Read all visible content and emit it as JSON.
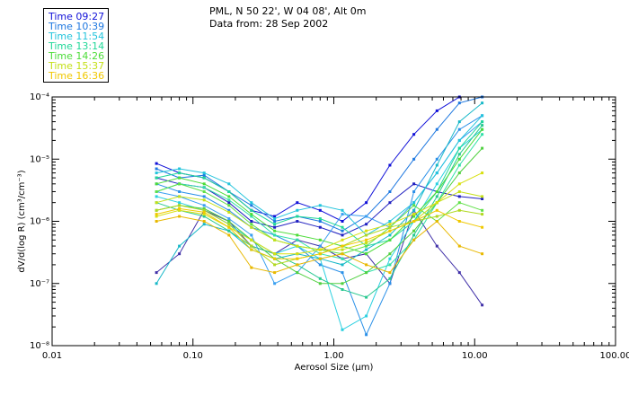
{
  "chart_data": {
    "type": "line",
    "title_lines": [
      "PML, N 50 22', W 04 08', Alt 0m",
      "Data from: 28 Sep 2002"
    ],
    "xlabel": "Aerosol Size (µm)",
    "ylabel": "dV/d(log R) (cm³/cm⁻³)",
    "x_scale": "log",
    "y_scale": "log",
    "xlim": [
      0.01,
      100.0
    ],
    "ylim": [
      1e-08,
      0.0001
    ],
    "x_tick_labels": [
      "0.01",
      "0.10",
      "1.00",
      "10.00",
      "100.00"
    ],
    "x_tick_values": [
      0.01,
      0.1,
      1.0,
      10.0,
      100.0
    ],
    "y_tick_labels": [
      "10⁻⁸",
      "10⁻⁷",
      "10⁻⁶",
      "10⁻⁵",
      "10⁻⁴"
    ],
    "y_tick_values": [
      1e-08,
      1e-07,
      1e-06,
      1e-05,
      0.0001
    ],
    "x": [
      0.055,
      0.08,
      0.12,
      0.18,
      0.26,
      0.38,
      0.55,
      0.8,
      1.15,
      1.7,
      2.5,
      3.7,
      5.4,
      7.8,
      11.3
    ],
    "legend": [
      {
        "label": "Time 09:27",
        "color": "#1010d8"
      },
      {
        "label": "Time 10:39",
        "color": "#1e78e0"
      },
      {
        "label": "Time 11:54",
        "color": "#22c4dc"
      },
      {
        "label": "Time 13:14",
        "color": "#20d898"
      },
      {
        "label": "Time 14:26",
        "color": "#4cdc38"
      },
      {
        "label": "Time 15:37",
        "color": "#c4e018"
      },
      {
        "label": "Time 16:36",
        "color": "#f0c800"
      }
    ],
    "series": [
      {
        "name": "Time 09:27",
        "color": "#1010d8",
        "values": [
          8.5e-06,
          6e-06,
          5e-06,
          3e-06,
          1.5e-06,
          1.2e-06,
          2e-06,
          1.5e-06,
          1e-06,
          2e-06,
          8e-06,
          2.5e-05,
          6e-05,
          0.0001,
          0.00012
        ]
      },
      {
        "name": "Time 09:27",
        "color": "#2020c0",
        "values": [
          5e-06,
          4e-06,
          3.5e-06,
          2e-06,
          1e-06,
          8e-07,
          1e-06,
          8e-07,
          6e-07,
          9e-07,
          2e-06,
          4e-06,
          3e-06,
          2.5e-06,
          2.3e-06
        ]
      },
      {
        "name": "Time 09:27",
        "color": "#4030a8",
        "values": [
          1.5e-07,
          3e-07,
          1.5e-06,
          1e-06,
          4e-07,
          3e-07,
          5e-07,
          4e-07,
          2.5e-07,
          3e-07,
          1e-07,
          1.5e-06,
          4e-07,
          1.5e-07,
          4.5e-08
        ]
      },
      {
        "name": "Time 10:39",
        "color": "#1e78e0",
        "values": [
          7e-06,
          5e-06,
          5.5e-06,
          3e-06,
          1.8e-06,
          1e-06,
          1.2e-06,
          1e-06,
          7e-07,
          1.2e-06,
          3e-06,
          1e-05,
          3e-05,
          8e-05,
          0.0001
        ]
      },
      {
        "name": "Time 10:39",
        "color": "#2a90e8",
        "values": [
          4e-06,
          3e-06,
          2.5e-06,
          1.5e-06,
          8e-07,
          6e-07,
          4e-07,
          2e-07,
          1.5e-07,
          1.5e-08,
          1e-07,
          3e-06,
          1e-05,
          3e-05,
          5e-05
        ]
      },
      {
        "name": "Time 10:39",
        "color": "#3aa0f0",
        "values": [
          3e-06,
          2.5e-06,
          1.8e-06,
          1.1e-06,
          6e-07,
          1e-07,
          1.5e-07,
          4e-07,
          1.3e-06,
          1.2e-06,
          8e-07,
          2e-06,
          6e-06,
          2e-05,
          4e-05
        ]
      },
      {
        "name": "Time 11:54",
        "color": "#22c4dc",
        "values": [
          6e-06,
          7e-06,
          6e-06,
          4e-06,
          2e-06,
          1.1e-06,
          1.5e-06,
          1.8e-06,
          1.5e-06,
          6e-07,
          1e-06,
          2e-06,
          6e-06,
          2e-05,
          5e-05
        ]
      },
      {
        "name": "Time 11:54",
        "color": "#2ad0e0",
        "values": [
          2.5e-06,
          2e-06,
          1.5e-06,
          9e-07,
          5e-07,
          3e-07,
          4e-07,
          2.5e-07,
          1.8e-08,
          3e-08,
          2.5e-07,
          1e-06,
          4e-06,
          1.5e-05,
          3e-05
        ]
      },
      {
        "name": "Time 11:54",
        "color": "#18b8c8",
        "values": [
          1e-07,
          4e-07,
          9e-07,
          7e-07,
          3.5e-07,
          2.5e-07,
          3e-07,
          2.5e-07,
          2e-07,
          3.5e-07,
          6e-07,
          1.5e-06,
          8e-06,
          4e-05,
          8e-05
        ]
      },
      {
        "name": "Time 13:14",
        "color": "#20d898",
        "values": [
          5e-06,
          6e-06,
          5e-06,
          3e-06,
          1.5e-06,
          9e-07,
          1.2e-06,
          1.1e-06,
          8e-07,
          4e-07,
          5e-07,
          1e-06,
          3e-06,
          1.5e-05,
          4e-05
        ]
      },
      {
        "name": "Time 13:14",
        "color": "#30e0a8",
        "values": [
          3e-06,
          4e-06,
          3.5e-06,
          2.2e-06,
          1.2e-06,
          6e-07,
          5e-07,
          3e-07,
          2.5e-07,
          1.5e-07,
          2e-07,
          5e-07,
          2e-06,
          8e-06,
          2.5e-05
        ]
      },
      {
        "name": "Time 13:14",
        "color": "#28c890",
        "values": [
          2e-06,
          1.5e-06,
          1.2e-06,
          7e-07,
          4e-07,
          3e-07,
          2e-07,
          1.2e-07,
          8e-08,
          6e-08,
          1.2e-07,
          6e-07,
          2.5e-06,
          1.2e-05,
          3.5e-05
        ]
      },
      {
        "name": "Time 14:26",
        "color": "#4cdc38",
        "values": [
          4e-06,
          5e-06,
          4e-06,
          2.5e-06,
          1.3e-06,
          7e-07,
          6e-07,
          5e-07,
          4e-07,
          3e-07,
          5e-07,
          1.2e-06,
          3e-06,
          1e-05,
          3e-05
        ]
      },
      {
        "name": "Time 14:26",
        "color": "#60e048",
        "values": [
          3e-06,
          4e-06,
          3e-06,
          1.8e-06,
          9e-07,
          5e-07,
          4e-07,
          3.5e-07,
          3e-07,
          4e-07,
          8e-07,
          1.8e-06,
          1e-06,
          2e-06,
          1.5e-06
        ]
      },
      {
        "name": "Time 14:26",
        "color": "#50d040",
        "values": [
          1.5e-06,
          1.8e-06,
          1.6e-06,
          1e-06,
          5e-07,
          2.5e-07,
          1.5e-07,
          1e-07,
          1e-07,
          1.5e-07,
          3e-07,
          7e-07,
          2e-06,
          6e-06,
          1.5e-05
        ]
      },
      {
        "name": "Time 15:37",
        "color": "#c4e018",
        "values": [
          2e-06,
          2.5e-06,
          2.2e-06,
          1.4e-06,
          8e-07,
          5e-07,
          4e-07,
          3.5e-07,
          3.5e-07,
          4.5e-07,
          7e-07,
          1e-06,
          2e-06,
          3e-06,
          2.5e-06
        ]
      },
      {
        "name": "Time 15:37",
        "color": "#b0d820",
        "values": [
          1.5e-06,
          1.8e-06,
          1.5e-06,
          9e-07,
          4e-07,
          2e-07,
          2.5e-07,
          3e-07,
          4e-07,
          6e-07,
          8e-07,
          1e-06,
          1.2e-06,
          1.5e-06,
          1.3e-06
        ]
      },
      {
        "name": "Time 15:37",
        "color": "#d8e010",
        "values": [
          1.2e-06,
          1.5e-06,
          1.3e-06,
          8e-07,
          5e-07,
          3e-07,
          3e-07,
          3.5e-07,
          5e-07,
          7e-07,
          9e-07,
          1.3e-06,
          2e-06,
          4e-06,
          6e-06
        ]
      },
      {
        "name": "Time 16:36",
        "color": "#f0c800",
        "values": [
          1.3e-06,
          1.6e-06,
          1.4e-06,
          8e-07,
          3.5e-07,
          2.5e-07,
          2.5e-07,
          3e-07,
          4e-07,
          5e-07,
          7e-07,
          1e-06,
          1.5e-06,
          1e-06,
          8e-07
        ]
      },
      {
        "name": "Time 16:36",
        "color": "#e8b800",
        "values": [
          1e-06,
          1.2e-06,
          1e-06,
          6e-07,
          1.8e-07,
          1.5e-07,
          2e-07,
          2.5e-07,
          3e-07,
          2e-07,
          1.5e-07,
          5e-07,
          1e-06,
          4e-07,
          3e-07
        ]
      }
    ]
  }
}
